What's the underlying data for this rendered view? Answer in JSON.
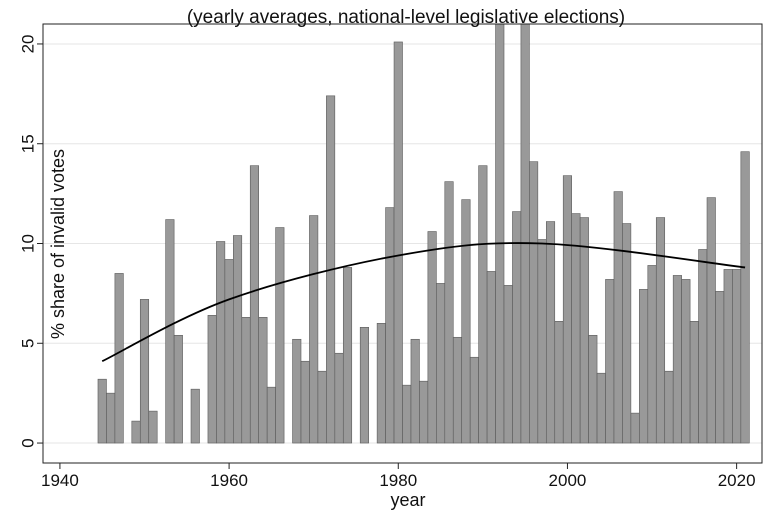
{
  "chart_data": {
    "type": "bar",
    "title": "(yearly averages, national-level legislative elections)",
    "xlabel": "year",
    "ylabel": "% share of invalid votes",
    "xlim": [
      1938,
      2023
    ],
    "ylim": [
      -1,
      21
    ],
    "x_ticks": [
      1940,
      1960,
      1980,
      2000,
      2020
    ],
    "y_ticks": [
      0,
      5,
      10,
      15,
      20
    ],
    "grid": true,
    "series": [
      {
        "x": [
          1945,
          1946,
          1947,
          1949,
          1950,
          1951,
          1953,
          1954,
          1956,
          1958,
          1959,
          1960,
          1961,
          1962,
          1963,
          1964,
          1965,
          1966,
          1968,
          1969,
          1970,
          1971,
          1972,
          1973,
          1974,
          1976,
          1978,
          1979,
          1980,
          1981,
          1982,
          1983,
          1984,
          1985,
          1986,
          1987,
          1988,
          1989,
          1990,
          1991,
          1992,
          1993,
          1994,
          1995,
          1996,
          1997,
          1998,
          1999,
          2000,
          2001,
          2002,
          2003,
          2004,
          2005,
          2006,
          2007,
          2008,
          2009,
          2010,
          2011,
          2012,
          2013,
          2014,
          2015,
          2016,
          2017,
          2018,
          2019,
          2020,
          2021
        ],
        "values": [
          3.2,
          2.5,
          8.5,
          1.1,
          7.2,
          1.6,
          11.2,
          5.4,
          2.7,
          6.4,
          10.1,
          9.2,
          10.4,
          6.3,
          13.9,
          6.3,
          2.8,
          10.8,
          5.2,
          4.1,
          11.4,
          3.6,
          17.4,
          4.5,
          8.8,
          5.8,
          6.0,
          11.8,
          20.1,
          2.9,
          5.2,
          3.1,
          10.6,
          8.0,
          13.1,
          5.3,
          12.2,
          4.3,
          13.9,
          8.6,
          21.0,
          7.9,
          11.6,
          21.0,
          14.1,
          10.2,
          11.1,
          6.1,
          13.4,
          11.5,
          11.3,
          5.4,
          3.5,
          8.2,
          12.6,
          11.0,
          1.5,
          7.7,
          8.9,
          11.3,
          3.6,
          8.4,
          8.2,
          6.1,
          9.7,
          12.3,
          7.6,
          8.7,
          8.7,
          14.6
        ]
      }
    ],
    "fit_line": {
      "type": "quadratic",
      "x": [
        1945,
        1960,
        1980,
        1997,
        2021
      ],
      "values": [
        4.1,
        7.2,
        9.4,
        10.0,
        8.8
      ]
    }
  }
}
